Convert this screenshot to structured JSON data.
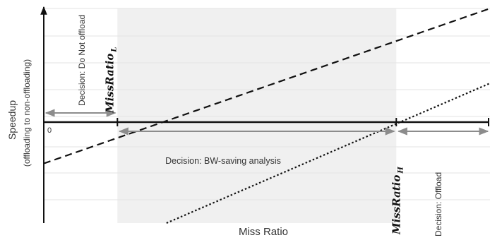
{
  "chart_data": {
    "type": "line",
    "xlabel": "Miss Ratio",
    "ylabel": "Speedup",
    "ylabel_sub": "(offloading to non-offloading)",
    "origin_label": "0",
    "grid": true,
    "x_range": [
      0,
      1
    ],
    "y_range": [
      -1,
      1.2
    ],
    "thresholds": [
      {
        "name": "MissRatio",
        "subscript": "L",
        "x": 0.165
      },
      {
        "name": "MissRatio",
        "subscript": "H",
        "x": 0.79
      }
    ],
    "shaded_region": {
      "from": 0.165,
      "to": 0.79,
      "color": "#f0f0f0"
    },
    "regions": [
      {
        "label": "Decision: Do Not offload",
        "from": 0.0,
        "to": 0.165
      },
      {
        "label": "Decision: BW-saving analysis",
        "from": 0.165,
        "to": 0.79
      },
      {
        "label": "Decision: Offload",
        "from": 0.79,
        "to": 1.0
      }
    ],
    "series": [
      {
        "style": "dashed",
        "x": [
          0.0,
          1.0
        ],
        "y": [
          -0.41,
          1.2
        ]
      },
      {
        "style": "dotted",
        "x": [
          0.275,
          1.0
        ],
        "y": [
          -1.0,
          0.41
        ]
      }
    ],
    "colors": {
      "axis": "#111111",
      "grid": "#e3e3e3",
      "shade": "#f0f0f0",
      "arrow": "#8c8c8c",
      "line": "#111111"
    }
  }
}
